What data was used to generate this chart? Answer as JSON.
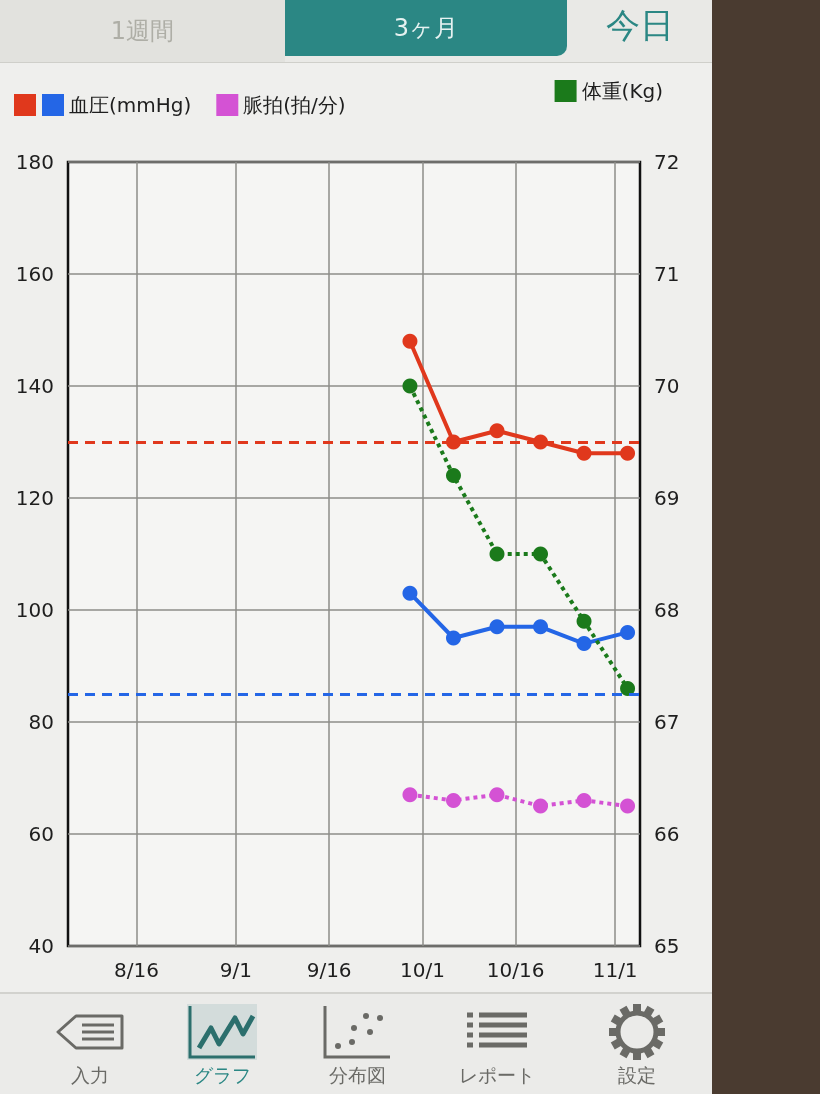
{
  "chart_data": {
    "type": "line",
    "x": [
      "--09-29",
      "--10-06",
      "--10-13",
      "--10-20",
      "--10-27",
      "--11-03"
    ],
    "series": [
      {
        "color": "#e0381c",
        "values": [
          148,
          130,
          132,
          130,
          128,
          128
        ],
        "line_style": "solid"
      },
      {
        "name": "血圧(mmHg)",
        "color": "#2466e6",
        "values": [
          103,
          95,
          97,
          97,
          94,
          96
        ],
        "line_style": "solid"
      },
      {
        "name": "脈拍(拍/分)",
        "color": "#d452d4",
        "values": [
          67,
          66,
          67,
          65,
          66,
          65
        ],
        "line_style": "dotted"
      },
      {
        "name": "体重(Kg)",
        "color": "#1b7a1b",
        "values": [
          70,
          69.2,
          68.5,
          68.5,
          67.9,
          67.3
        ],
        "line_style": "dotted",
        "axis": "y2"
      }
    ],
    "xlim": [
      "--08-05",
      "--11-05"
    ],
    "xticks": [
      {
        "value": "--08-16",
        "label": "8/16"
      },
      {
        "value": "--09-01",
        "label": "9/1"
      },
      {
        "value": "--09-16",
        "label": "9/16"
      },
      {
        "value": "--10-01",
        "label": "10/1"
      },
      {
        "value": "--10-16",
        "label": "10/16"
      },
      {
        "value": "--11-01",
        "label": "11/1"
      }
    ],
    "ylim": [
      40,
      180
    ],
    "yticks": [
      40,
      60,
      80,
      100,
      120,
      140,
      160,
      180
    ],
    "y2lim": [
      65,
      72
    ],
    "y2ticks": [
      65,
      66,
      67,
      68,
      69,
      70,
      71,
      72
    ],
    "ref_lines": [
      {
        "axis": "y",
        "value": 130,
        "color": "#e0381c",
        "line_style": "dashed"
      },
      {
        "axis": "y",
        "value": 85,
        "color": "#2466e6",
        "line_style": "dashed"
      }
    ],
    "grid": true,
    "legend": "top",
    "marker": "circle",
    "annotations": [
      "1週間",
      "3ヶ月",
      "今日",
      "入力",
      "グラフ",
      "分布図",
      "レポート",
      "設定"
    ]
  }
}
